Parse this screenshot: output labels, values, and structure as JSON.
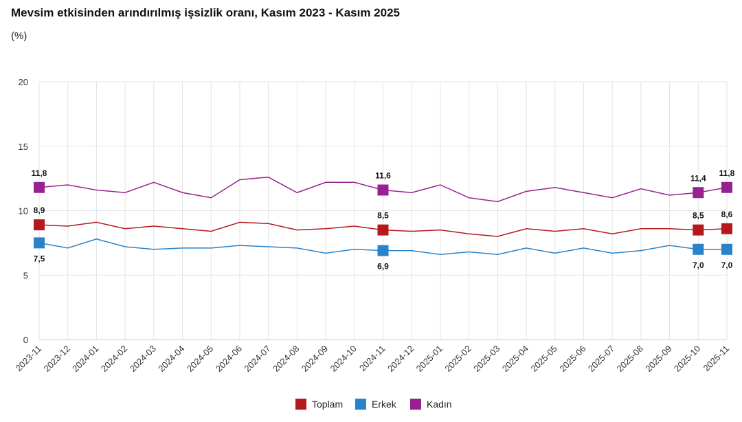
{
  "chart_data": {
    "type": "line",
    "title": "Mevsim etkisinden arındırılmış işsizlik oranı, Kasım 2023 - Kasım 2025",
    "subtitle": "(%)",
    "ylim": [
      0,
      20
    ],
    "yticks": [
      0,
      5,
      10,
      15,
      20
    ],
    "grid": true,
    "legend_position": "bottom",
    "x": [
      "2023-11",
      "2023-12",
      "2024-01",
      "2024-02",
      "2024-03",
      "2024-04",
      "2024-05",
      "2024-06",
      "2024-07",
      "2024-08",
      "2024-09",
      "2024-10",
      "2024-11",
      "2024-12",
      "2025-01",
      "2025-02",
      "2025-03",
      "2025-04",
      "2025-05",
      "2025-06",
      "2025-07",
      "2025-08",
      "2025-09",
      "2025-10",
      "2025-11"
    ],
    "labeled_indices": [
      0,
      12,
      23,
      24
    ],
    "series": [
      {
        "name": "Toplam",
        "color": "#b5191e",
        "label_pos": "above",
        "values": [
          8.9,
          8.8,
          9.1,
          8.6,
          8.8,
          8.6,
          8.4,
          9.1,
          9.0,
          8.5,
          8.6,
          8.8,
          8.5,
          8.4,
          8.5,
          8.2,
          8.0,
          8.6,
          8.4,
          8.6,
          8.2,
          8.6,
          8.6,
          8.5,
          8.6
        ]
      },
      {
        "name": "Erkek",
        "color": "#2a82c9",
        "label_pos": "below",
        "values": [
          7.5,
          7.1,
          7.8,
          7.2,
          7.0,
          7.1,
          7.1,
          7.3,
          7.2,
          7.1,
          6.7,
          7.0,
          6.9,
          6.9,
          6.6,
          6.8,
          6.6,
          7.1,
          6.7,
          7.1,
          6.7,
          6.9,
          7.3,
          7.0,
          7.0
        ]
      },
      {
        "name": "Kadın",
        "color": "#97218f",
        "label_pos": "above",
        "values": [
          11.8,
          12.0,
          11.6,
          11.4,
          12.2,
          11.4,
          11.0,
          12.4,
          12.6,
          11.4,
          12.2,
          12.2,
          11.6,
          11.4,
          12.0,
          11.0,
          10.7,
          11.5,
          11.8,
          11.4,
          11.0,
          11.7,
          11.2,
          11.4,
          11.8
        ]
      }
    ]
  }
}
